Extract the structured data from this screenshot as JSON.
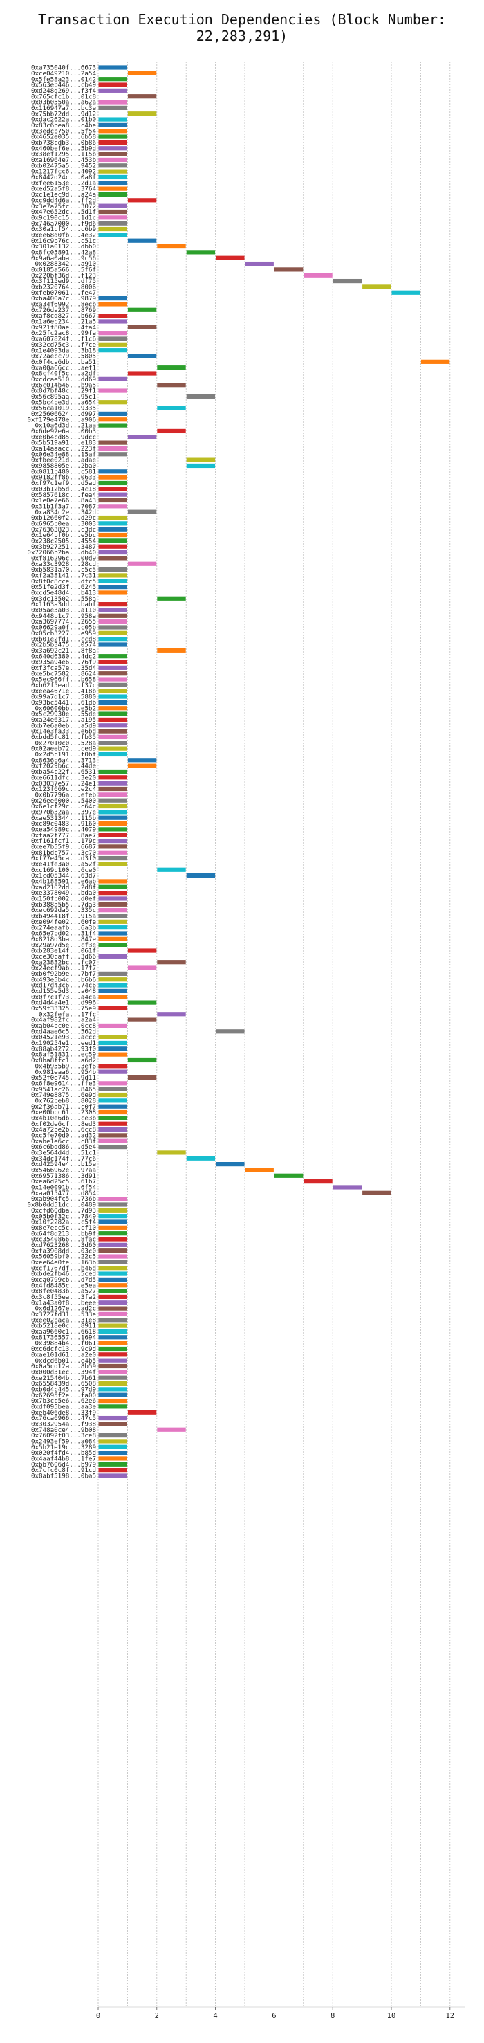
{
  "chart_data": {
    "type": "bar",
    "orientation": "horizontal",
    "title": "Transaction Execution Dependencies (Block Number: 22,283,291)",
    "xlabel": "",
    "ylabel": "",
    "xlim": [
      0,
      12.5
    ],
    "xticks": [
      0,
      2,
      4,
      6,
      8,
      10,
      12
    ],
    "grid": true,
    "palette": [
      "#1f77b4",
      "#ff7f0e",
      "#2ca02c",
      "#d62728",
      "#9467bd",
      "#8c564b",
      "#e377c2",
      "#7f7f7f",
      "#bcbd22",
      "#17becf"
    ],
    "bar_length": 1,
    "transactions": [
      {
        "label": "0xa735040f...6673",
        "start": 0
      },
      {
        "label": "0xce049210...2a54",
        "start": 1
      },
      {
        "label": "0x5fe58a23...0142",
        "start": 0
      },
      {
        "label": "0x563eb446...cb49",
        "start": 0
      },
      {
        "label": "0xd248d269...f3f4",
        "start": 0
      },
      {
        "label": "0x765cfc1b...01c8",
        "start": 1
      },
      {
        "label": "0x03b0550a...a62a",
        "start": 0
      },
      {
        "label": "0x116947a7...bc3e",
        "start": 0
      },
      {
        "label": "0x75bb72dd...9d12",
        "start": 1
      },
      {
        "label": "0xdac2622a...01b0",
        "start": 0
      },
      {
        "label": "0x83c6bea8...c4be",
        "start": 0
      },
      {
        "label": "0x3edcb750...5f54",
        "start": 0
      },
      {
        "label": "0x4652e035...6b58",
        "start": 0
      },
      {
        "label": "0xb738cdb3...0b86",
        "start": 0
      },
      {
        "label": "0x460bef6e...5b9d",
        "start": 0
      },
      {
        "label": "0x38ef1295...115b",
        "start": 0
      },
      {
        "label": "0xa16964e7...453b",
        "start": 0
      },
      {
        "label": "0xb02475a5...9452",
        "start": 0
      },
      {
        "label": "0x1217fcc6...4092",
        "start": 0
      },
      {
        "label": "0x8442d24c...0a8f",
        "start": 0
      },
      {
        "label": "0xfee6153e...2d1a",
        "start": 0
      },
      {
        "label": "0xed52a5f8...3764",
        "start": 0
      },
      {
        "label": "0xc1e1ec9d...a24a",
        "start": 0
      },
      {
        "label": "0xc9dd4d6a...ff2d",
        "start": 1
      },
      {
        "label": "0x3e7a75fc...3072",
        "start": 0
      },
      {
        "label": "0x47e652dc...5d1f",
        "start": 0
      },
      {
        "label": "0x9c190c15...1d1c",
        "start": 0
      },
      {
        "label": "0x746a7000...f9d6",
        "start": 0
      },
      {
        "label": "0x30a1cf54...c6b9",
        "start": 0
      },
      {
        "label": "0xee68d0fb...4e32",
        "start": 0
      },
      {
        "label": "0x16c9b76c...c51c",
        "start": 1
      },
      {
        "label": "0x301a0132...dbb0",
        "start": 2
      },
      {
        "label": "0x8fc05891...42a8",
        "start": 3
      },
      {
        "label": "0x9a6a0aba...9c56",
        "start": 4
      },
      {
        "label": "0x0288342...a910",
        "start": 5
      },
      {
        "label": "0x0185a566...5f6f",
        "start": 6
      },
      {
        "label": "0x220bf36d...f123",
        "start": 7
      },
      {
        "label": "0x3f115ed9...df75",
        "start": 8
      },
      {
        "label": "0xb2320764...8006",
        "start": 9
      },
      {
        "label": "0xfeb07061...fe47",
        "start": 10
      },
      {
        "label": "0xba400a7c...9879",
        "start": 0
      },
      {
        "label": "0xa34f6992...8ecb",
        "start": 0
      },
      {
        "label": "0x726da237...8769",
        "start": 1
      },
      {
        "label": "0xaf8cd827...b667",
        "start": 0
      },
      {
        "label": "0x1a6ec234...21a5",
        "start": 0
      },
      {
        "label": "0x921f80ae...4fa4",
        "start": 1
      },
      {
        "label": "0x25fc2ac8...99fa",
        "start": 0
      },
      {
        "label": "0xa607824f...f1c6",
        "start": 0
      },
      {
        "label": "0x32cd75c3...f7ce",
        "start": 0
      },
      {
        "label": "0x1e4093da...3b18",
        "start": 0
      },
      {
        "label": "0x72aecc79...5805",
        "start": 1
      },
      {
        "label": "0x0f4ca6db...ba51",
        "start": 11
      },
      {
        "label": "0xa00a66cc...aef1",
        "start": 2
      },
      {
        "label": "0x8cf40f5c...a2df",
        "start": 1
      },
      {
        "label": "0xcdcae510...dd69",
        "start": 0
      },
      {
        "label": "0x6c014b46...b9a5",
        "start": 2
      },
      {
        "label": "0x8d7bf48c...29f1",
        "start": 0
      },
      {
        "label": "0x56c895aa...95c1",
        "start": 3
      },
      {
        "label": "0x5bc4be3d...a654",
        "start": 0
      },
      {
        "label": "0x56ca1019...9335",
        "start": 2
      },
      {
        "label": "0x25606624...d997",
        "start": 0
      },
      {
        "label": "0xf179e478e...a906",
        "start": 0
      },
      {
        "label": "0x10a6d3d...21aa",
        "start": 0
      },
      {
        "label": "0x6de92e6a...00b3",
        "start": 2
      },
      {
        "label": "0xe0b4cd85...9dcc",
        "start": 1
      },
      {
        "label": "0x5b519a91...e183",
        "start": 0
      },
      {
        "label": "0xa14aaacc...223f",
        "start": 0
      },
      {
        "label": "0x06e34e88...15af",
        "start": 0
      },
      {
        "label": "0xfbee021d...adae",
        "start": 3
      },
      {
        "label": "0x9858805e...2ba0",
        "start": 3
      },
      {
        "label": "0x0811b480...c581",
        "start": 0
      },
      {
        "label": "0x9182ff8b...0633",
        "start": 0
      },
      {
        "label": "0xf97c1ef9...d5ad",
        "start": 0
      },
      {
        "label": "0x03b12b5d...4c18",
        "start": 0
      },
      {
        "label": "0x5857618c...fea4",
        "start": 0
      },
      {
        "label": "0x1e0e7e66...8a43",
        "start": 0
      },
      {
        "label": "0x31b1f3a7...7087",
        "start": 0
      },
      {
        "label": "0xa834c2e...342d",
        "start": 1
      },
      {
        "label": "0xb12660f2...d29c",
        "start": 0
      },
      {
        "label": "0x6965c0ea...3003",
        "start": 0
      },
      {
        "label": "0x76363823...c3dc",
        "start": 0
      },
      {
        "label": "0x1e64bf0b...e5bc",
        "start": 0
      },
      {
        "label": "0x238c2505...4554",
        "start": 0
      },
      {
        "label": "0x3b927251...3487",
        "start": 0
      },
      {
        "label": "0x72066b2ba...db40",
        "start": 0
      },
      {
        "label": "0xf816296c...00d9",
        "start": 0
      },
      {
        "label": "0xa33c3928...28cd",
        "start": 1
      },
      {
        "label": "0xb5831a70...c5c5",
        "start": 0
      },
      {
        "label": "0xf2a38141...7c31",
        "start": 0
      },
      {
        "label": "0x8f0c8cce...dfc5",
        "start": 0
      },
      {
        "label": "0x51fe2d3f...6245",
        "start": 0
      },
      {
        "label": "0xcd5e48d4...b413",
        "start": 0
      },
      {
        "label": "0x3dc13502...558a",
        "start": 2
      },
      {
        "label": "0x1163a3dd...babf",
        "start": 0
      },
      {
        "label": "0x05ae3a03...a110",
        "start": 0
      },
      {
        "label": "0x9448b1c7...958a",
        "start": 0
      },
      {
        "label": "0xa3697774...2655",
        "start": 0
      },
      {
        "label": "0x06629a0f...c05b",
        "start": 0
      },
      {
        "label": "0x05cb3227...e959",
        "start": 0
      },
      {
        "label": "0xb01e2fd1...ccd8",
        "start": 0
      },
      {
        "label": "0x2b5b3475...0574",
        "start": 0
      },
      {
        "label": "0x3a692c21...8f8a",
        "start": 2
      },
      {
        "label": "0x640d6380...4dc2",
        "start": 0
      },
      {
        "label": "0x935a94e6...76f9",
        "start": 0
      },
      {
        "label": "0xf3fca57e...35d4",
        "start": 0
      },
      {
        "label": "0xe5bc7582...8624",
        "start": 0
      },
      {
        "label": "0x5ec966ff...b658",
        "start": 0
      },
      {
        "label": "0xb62f5ead...f37c",
        "start": 0
      },
      {
        "label": "0xeea4671e...418b",
        "start": 0
      },
      {
        "label": "0x99a7d1c7...5880",
        "start": 0
      },
      {
        "label": "0x93bc5441...61db",
        "start": 0
      },
      {
        "label": "0x60600bb...e5b2",
        "start": 0
      },
      {
        "label": "0x5c29930e...55de",
        "start": 0
      },
      {
        "label": "0xa24e6317...a195",
        "start": 0
      },
      {
        "label": "0xb7e6a0eb...a5d9",
        "start": 0
      },
      {
        "label": "0x14e3fa33...e6bd",
        "start": 0
      },
      {
        "label": "0xbdd5fc81...fb35",
        "start": 0
      },
      {
        "label": "0x27010c0...528a",
        "start": 0
      },
      {
        "label": "0x02aeeb72...ced9",
        "start": 0
      },
      {
        "label": "0x2d5c191...f0bf",
        "start": 0
      },
      {
        "label": "0x8636b6a4...3713",
        "start": 1
      },
      {
        "label": "0xf2029b6c...44de",
        "start": 1
      },
      {
        "label": "0xba54c22f...6531",
        "start": 0
      },
      {
        "label": "0xe6611dfc...3e20",
        "start": 0
      },
      {
        "label": "0x03037e57...24e1",
        "start": 0
      },
      {
        "label": "0x123f669c...e2c4",
        "start": 0
      },
      {
        "label": "0x0b7796a...efeb",
        "start": 0
      },
      {
        "label": "0x26ee6000...5400",
        "start": 0
      },
      {
        "label": "0x6e1cf29c...c64c",
        "start": 0
      },
      {
        "label": "0x970b32aa...397e",
        "start": 0
      },
      {
        "label": "0xae531344...115b",
        "start": 0
      },
      {
        "label": "0xc89c0483...9160",
        "start": 0
      },
      {
        "label": "0xea54989c...4079",
        "start": 0
      },
      {
        "label": "0xfaa2f777...8ae7",
        "start": 0
      },
      {
        "label": "0xf161fcf1...179c",
        "start": 0
      },
      {
        "label": "0xee7b55f9...6687",
        "start": 0
      },
      {
        "label": "0x81bdc757...3c70",
        "start": 0
      },
      {
        "label": "0xf77e45ca...d3f0",
        "start": 0
      },
      {
        "label": "0xe41fe3a0...a52f",
        "start": 0
      },
      {
        "label": "0xc169c100...6ce0",
        "start": 2
      },
      {
        "label": "0x1cd05344...63d7",
        "start": 3
      },
      {
        "label": "0x4b188591...e6ab",
        "start": 0
      },
      {
        "label": "0xad2102dd...2d8f",
        "start": 0
      },
      {
        "label": "0xe3378049...bda0",
        "start": 0
      },
      {
        "label": "0x150fc002...d0ef",
        "start": 0
      },
      {
        "label": "0xb388a5b5...7da3",
        "start": 0
      },
      {
        "label": "0xec692da5...335c",
        "start": 0
      },
      {
        "label": "0xb494418f...915a",
        "start": 0
      },
      {
        "label": "0xe094fe02...60fe",
        "start": 0
      },
      {
        "label": "0x274eaafb...6a3b",
        "start": 0
      },
      {
        "label": "0x65e7bd02...31f4",
        "start": 0
      },
      {
        "label": "0x8218d3ba...847e",
        "start": 0
      },
      {
        "label": "0x29a97d5e...cf3e",
        "start": 0
      },
      {
        "label": "0xb283e14f...061f",
        "start": 1
      },
      {
        "label": "0xce30caff...3d66",
        "start": 0
      },
      {
        "label": "0xa23832bc...fc07",
        "start": 2
      },
      {
        "label": "0x24ecf9ab...17f7",
        "start": 1
      },
      {
        "label": "0xb0f92b9e...7bf7",
        "start": 0
      },
      {
        "label": "0x493e5b4c...b6b6",
        "start": 0
      },
      {
        "label": "0xd17d43c6...74c6",
        "start": 0
      },
      {
        "label": "0xd155e5d3...a048",
        "start": 0
      },
      {
        "label": "0x0f7c1f73...a4ca",
        "start": 0
      },
      {
        "label": "0xd4d4a4e1...d996",
        "start": 1
      },
      {
        "label": "0x59f33325...75e9",
        "start": 0
      },
      {
        "label": "0x32fefa...17fc",
        "start": 2
      },
      {
        "label": "0x4af982fc...a2a4",
        "start": 1
      },
      {
        "label": "0xab04bc0e...0cc8",
        "start": 0
      },
      {
        "label": "0xd4aae6c5...562d",
        "start": 4
      },
      {
        "label": "0x04521e93...accc",
        "start": 0
      },
      {
        "label": "0x190254e1...eed1",
        "start": 0
      },
      {
        "label": "0x88ab4272...93f0",
        "start": 0
      },
      {
        "label": "0x8af51831...ec59",
        "start": 0
      },
      {
        "label": "0x8ba8ffc1...a6d2",
        "start": 1
      },
      {
        "label": "0x4b955b9...3ef6",
        "start": 0
      },
      {
        "label": "0x981eaa6...954b",
        "start": 0
      },
      {
        "label": "0x52f0e745...9d11",
        "start": 1
      },
      {
        "label": "0x6f8e9614...ffe3",
        "start": 0
      },
      {
        "label": "0x9541ac26...8465",
        "start": 0
      },
      {
        "label": "0x749e8875...6e9d",
        "start": 0
      },
      {
        "label": "0x762ceb8...8028",
        "start": 0
      },
      {
        "label": "0x2f36ab71...c0f7",
        "start": 0
      },
      {
        "label": "0xe00bcc61...2308",
        "start": 0
      },
      {
        "label": "0x4b10e6db...ce3b",
        "start": 0
      },
      {
        "label": "0xf02de6cf...8ed3",
        "start": 0
      },
      {
        "label": "0x4a72be2b...6cc8",
        "start": 0
      },
      {
        "label": "0xc5fe70d0...ad32",
        "start": 0
      },
      {
        "label": "0xabe1e6cc...c83f",
        "start": 0
      },
      {
        "label": "0x6c6bdd86...d5e4",
        "start": 0
      },
      {
        "label": "0x3e564d4d...51c1",
        "start": 2
      },
      {
        "label": "0x34dc174f...77c6",
        "start": 3
      },
      {
        "label": "0xd42594e4...b15e",
        "start": 4
      },
      {
        "label": "0x5466962e...97aa",
        "start": 5
      },
      {
        "label": "0x69571386...3d91",
        "start": 6
      },
      {
        "label": "0xea6d25c5...61b7",
        "start": 7
      },
      {
        "label": "0x14e0091b...6f54",
        "start": 8
      },
      {
        "label": "0xaa015477...d854",
        "start": 9
      },
      {
        "label": "0xab904fc5...736b",
        "start": 0
      },
      {
        "label": "0x8b0dd51dc...0489",
        "start": 0
      },
      {
        "label": "0xcfd60dba...7d93",
        "start": 0
      },
      {
        "label": "0x05b0f32c...7849",
        "start": 0
      },
      {
        "label": "0x10f2282a...c5f4",
        "start": 0
      },
      {
        "label": "0x8e7ecc5c...cf10",
        "start": 0
      },
      {
        "label": "0x64f8d213...bb9f",
        "start": 0
      },
      {
        "label": "0xc3540866...8fac",
        "start": 0
      },
      {
        "label": "0xd7623268...3d60",
        "start": 0
      },
      {
        "label": "0xfa3908dd...03c0",
        "start": 0
      },
      {
        "label": "0x56059bf0...22c5",
        "start": 0
      },
      {
        "label": "0xee64e0fe...163b",
        "start": 0
      },
      {
        "label": "0xcf1767df...b46d",
        "start": 0
      },
      {
        "label": "0xbde2fb46...5ced",
        "start": 0
      },
      {
        "label": "0xca0799cb...d7d5",
        "start": 0
      },
      {
        "label": "0x4fd8485c...e5ea",
        "start": 0
      },
      {
        "label": "0x8fe0483b...a527",
        "start": 0
      },
      {
        "label": "0x3c8f55ea...3fa2",
        "start": 0
      },
      {
        "label": "0x1a43a0f8...beee",
        "start": 0
      },
      {
        "label": "0x6d1267e...ad2c",
        "start": 0
      },
      {
        "label": "0x3727fd31...533e",
        "start": 0
      },
      {
        "label": "0xee02baca...31e8",
        "start": 0
      },
      {
        "label": "0xb5218e0c...8911",
        "start": 0
      },
      {
        "label": "0xaa9660c1...6618",
        "start": 0
      },
      {
        "label": "0x81736557...1694",
        "start": 0
      },
      {
        "label": "0x39884b4...f061",
        "start": 0
      },
      {
        "label": "0xc6dcfc13...9c9d",
        "start": 0
      },
      {
        "label": "0xae101d61...a2e0",
        "start": 0
      },
      {
        "label": "0xdcd6b01...e4b5",
        "start": 0
      },
      {
        "label": "0x0a5cd12a...8b59",
        "start": 0
      },
      {
        "label": "0x000d31ec...394f",
        "start": 0
      },
      {
        "label": "0xe215404b...7b61",
        "start": 0
      },
      {
        "label": "0x6558439d...6508",
        "start": 0
      },
      {
        "label": "0xb0d4c445...97d9",
        "start": 0
      },
      {
        "label": "0x62695f2e...fa00",
        "start": 0
      },
      {
        "label": "0x7b3cc5e6...62e6",
        "start": 0
      },
      {
        "label": "0xdf095bea...aa3e",
        "start": 0
      },
      {
        "label": "0xeb406de8...33f9",
        "start": 1
      },
      {
        "label": "0x76ca6966...47c5",
        "start": 0
      },
      {
        "label": "0x3032954a...f938",
        "start": 0
      },
      {
        "label": "0x748a0ce4...9b08",
        "start": 2
      },
      {
        "label": "0x76092f03...3ce8",
        "start": 0
      },
      {
        "label": "0x2493ef59...a084",
        "start": 0
      },
      {
        "label": "0x5b21e19c...3289",
        "start": 0
      },
      {
        "label": "0x020f4fd4...b85d",
        "start": 0
      },
      {
        "label": "0x4aaf44b8...1fe7",
        "start": 0
      },
      {
        "label": "0xbb7606d4...b979",
        "start": 0
      },
      {
        "label": "0x7cfc0c8f...91cd",
        "start": 0
      },
      {
        "label": "0x8abf5198...0ba5",
        "start": 0
      }
    ]
  }
}
